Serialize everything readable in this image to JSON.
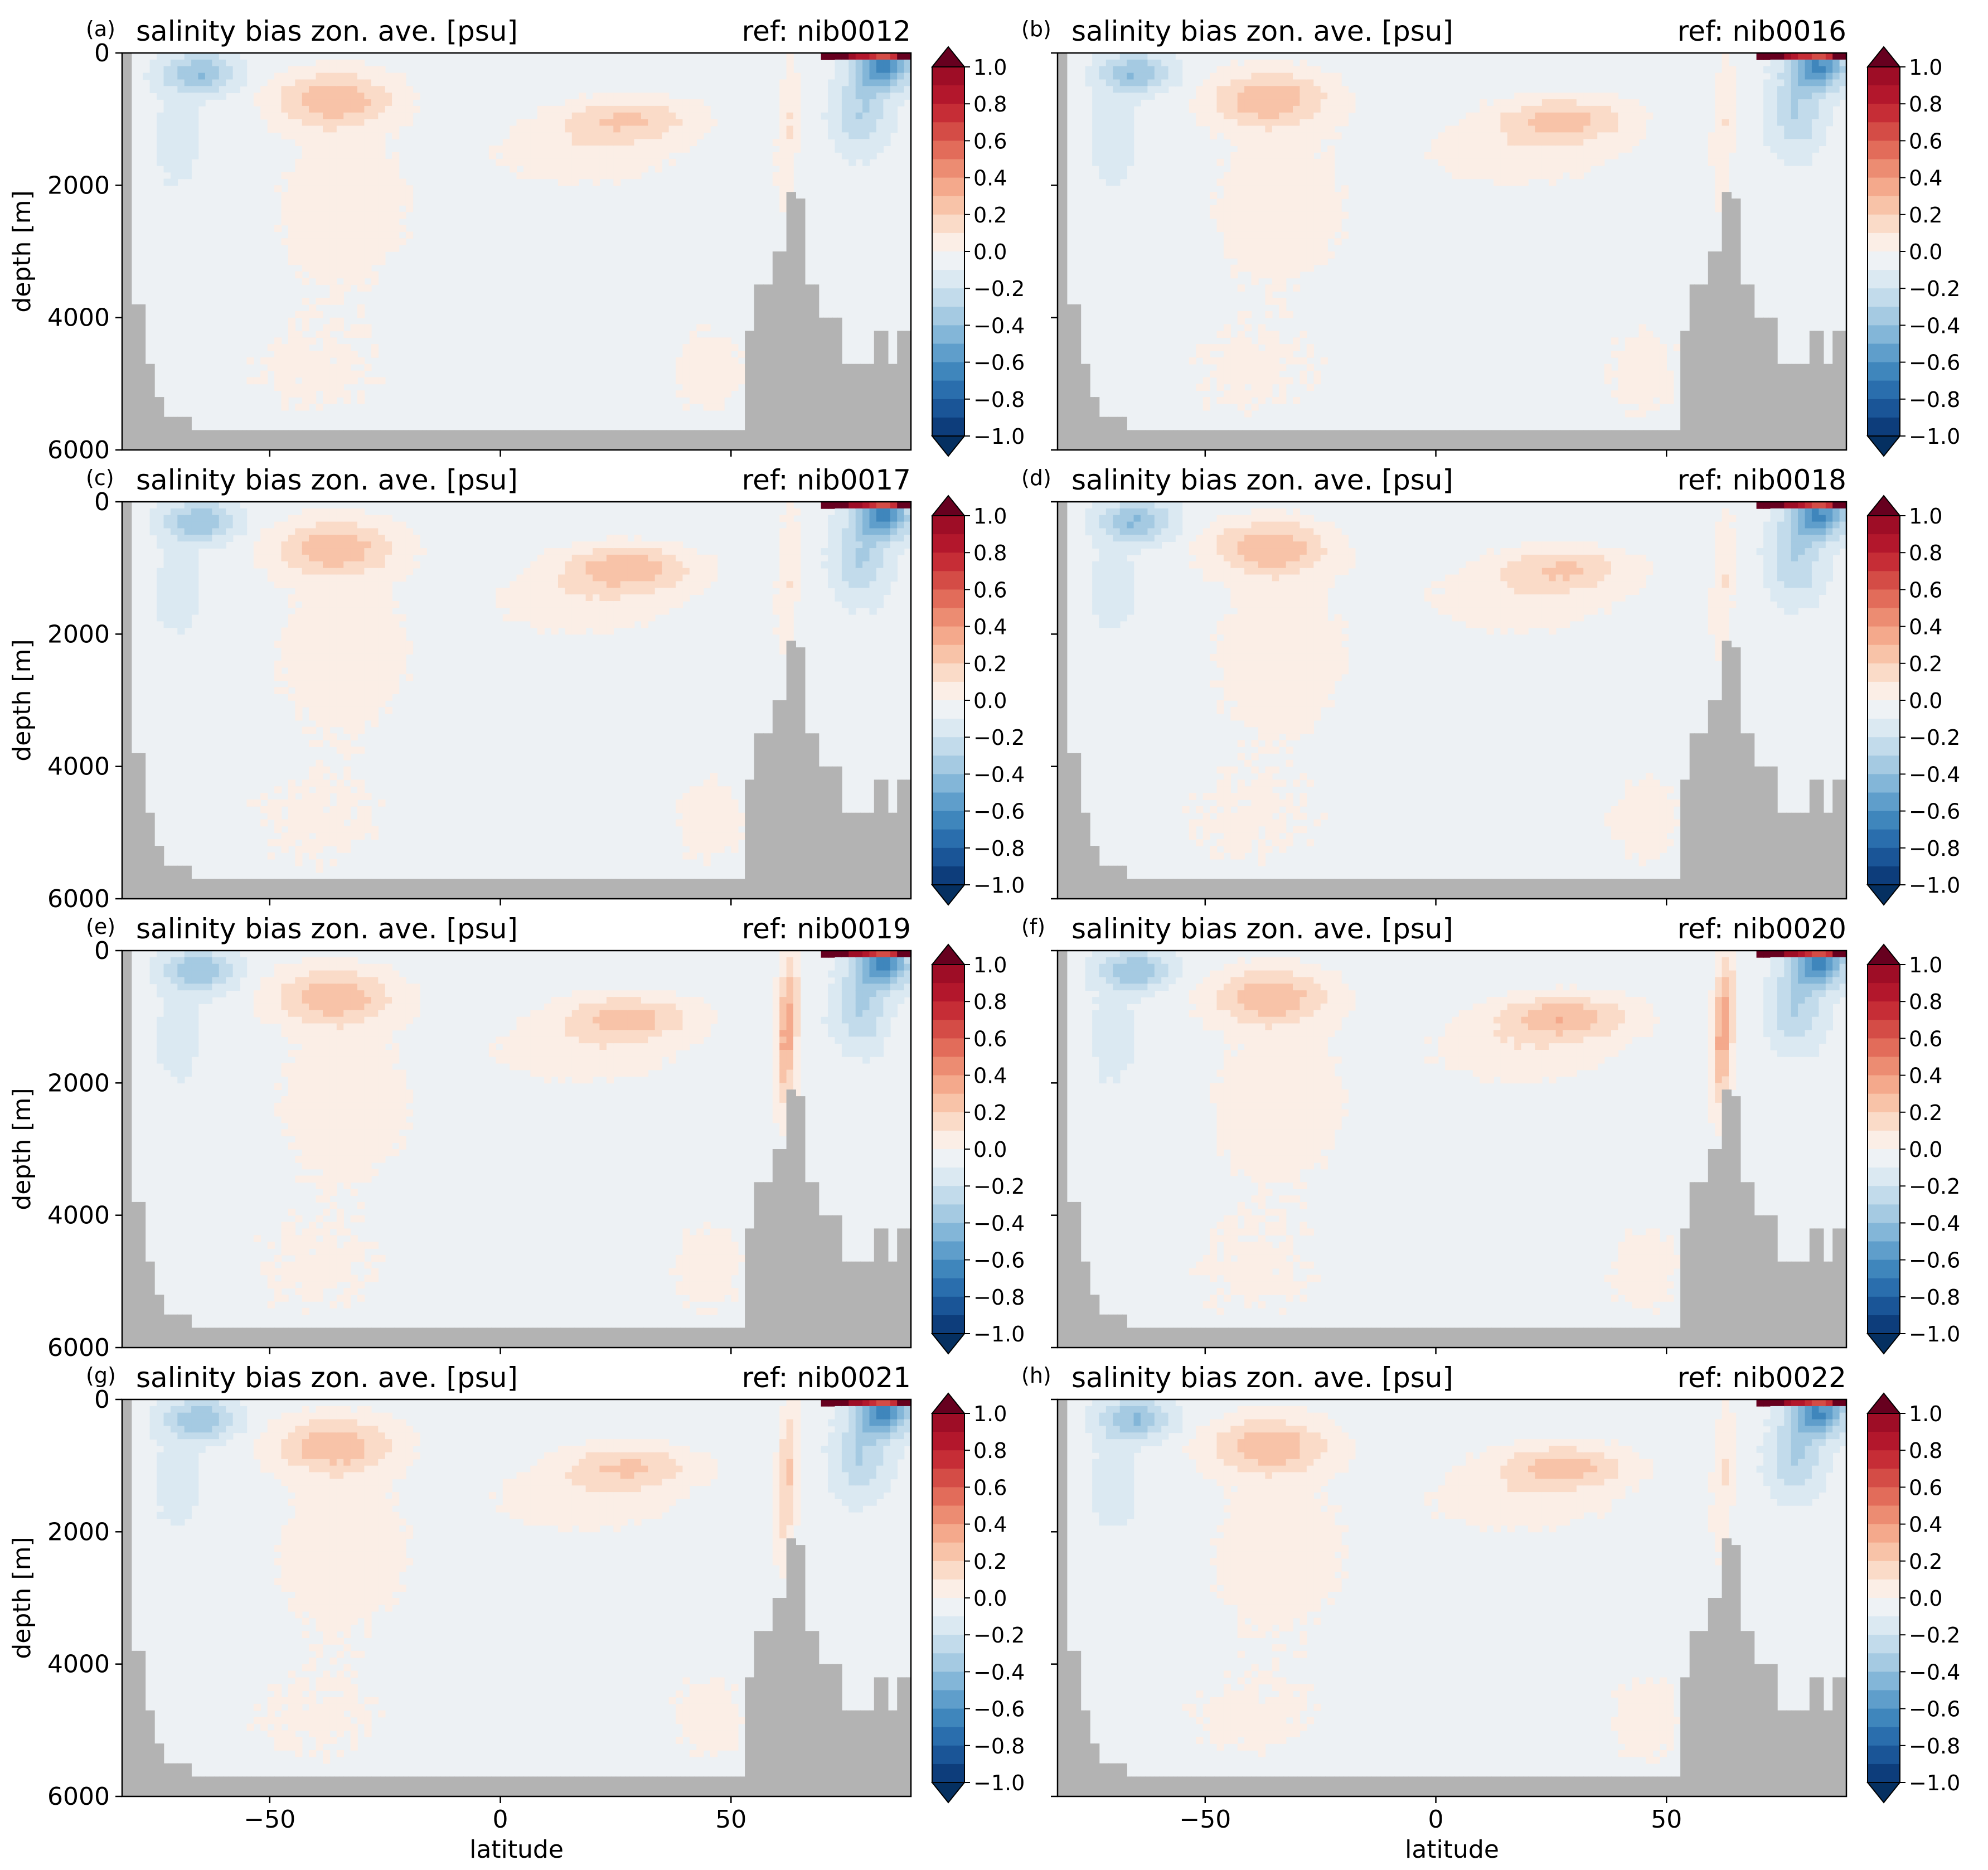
{
  "figure": {
    "colorbar_ticks": [
      "1.0",
      "0.8",
      "0.6",
      "0.4",
      "0.2",
      "0.0",
      "−0.2",
      "−0.4",
      "−0.6",
      "−0.8",
      "−1.0"
    ],
    "colorbar_colors": [
      "#9e0d26",
      "#b3172c",
      "#c62d36",
      "#d44c46",
      "#e26c5a",
      "#ec8c72",
      "#f4a98c",
      "#f8c3a8",
      "#fadbc8",
      "#fbeee6",
      "#eef2f5",
      "#dbe9f2",
      "#c2dbeb",
      "#a5cae2",
      "#83b6d8",
      "#5f9ecb",
      "#3f86bc",
      "#2a6ead",
      "#1a5597",
      "#0d3d7b"
    ],
    "colorbar_extend_colors": {
      "max": "#67001f",
      "min": "#053061"
    },
    "bathymetry_color": "#b3b3b3",
    "background_bias_color": "#edf1f4"
  },
  "chart_data": [
    {
      "type": "heatmap",
      "panel_label": "(a)",
      "title": "salinity bias zon. ave. [psu]",
      "ref": "ref: nib0012",
      "xlabel": "",
      "ylabel": "depth [m]",
      "xlim": [
        -82,
        89
      ],
      "ylim": [
        6000,
        0
      ],
      "xticks": [
        "−50",
        "0",
        "50"
      ],
      "yticks": [
        "0",
        "2000",
        "4000",
        "6000"
      ],
      "colorbar_range": [
        -1.0,
        1.0
      ],
      "show_xticklabels": false,
      "show_ylabels": true,
      "variant": 0
    },
    {
      "type": "heatmap",
      "panel_label": "(b)",
      "title": "salinity bias zon. ave. [psu]",
      "ref": "ref: nib0016",
      "xlabel": "",
      "ylabel": "",
      "xlim": [
        -82,
        89
      ],
      "ylim": [
        6000,
        0
      ],
      "xticks": [
        "−50",
        "0",
        "50"
      ],
      "yticks": [],
      "colorbar_range": [
        -1.0,
        1.0
      ],
      "show_xticklabels": false,
      "show_ylabels": false,
      "variant": 1
    },
    {
      "type": "heatmap",
      "panel_label": "(c)",
      "title": "salinity bias zon. ave. [psu]",
      "ref": "ref: nib0017",
      "xlabel": "",
      "ylabel": "depth [m]",
      "xlim": [
        -82,
        89
      ],
      "ylim": [
        6000,
        0
      ],
      "xticks": [
        "−50",
        "0",
        "50"
      ],
      "yticks": [
        "0",
        "2000",
        "4000",
        "6000"
      ],
      "colorbar_range": [
        -1.0,
        1.0
      ],
      "show_xticklabels": false,
      "show_ylabels": true,
      "variant": 2
    },
    {
      "type": "heatmap",
      "panel_label": "(d)",
      "title": "salinity bias zon. ave. [psu]",
      "ref": "ref: nib0018",
      "xlabel": "",
      "ylabel": "",
      "xlim": [
        -82,
        89
      ],
      "ylim": [
        6000,
        0
      ],
      "xticks": [
        "−50",
        "0",
        "50"
      ],
      "yticks": [],
      "colorbar_range": [
        -1.0,
        1.0
      ],
      "show_xticklabels": false,
      "show_ylabels": false,
      "variant": 3
    },
    {
      "type": "heatmap",
      "panel_label": "(e)",
      "title": "salinity bias zon. ave. [psu]",
      "ref": "ref: nib0019",
      "xlabel": "",
      "ylabel": "depth [m]",
      "xlim": [
        -82,
        89
      ],
      "ylim": [
        6000,
        0
      ],
      "xticks": [
        "−50",
        "0",
        "50"
      ],
      "yticks": [
        "0",
        "2000",
        "4000",
        "6000"
      ],
      "colorbar_range": [
        -1.0,
        1.0
      ],
      "show_xticklabels": false,
      "show_ylabels": true,
      "variant": 4
    },
    {
      "type": "heatmap",
      "panel_label": "(f)",
      "title": "salinity bias zon. ave. [psu]",
      "ref": "ref: nib0020",
      "xlabel": "",
      "ylabel": "",
      "xlim": [
        -82,
        89
      ],
      "ylim": [
        6000,
        0
      ],
      "xticks": [
        "−50",
        "0",
        "50"
      ],
      "yticks": [],
      "colorbar_range": [
        -1.0,
        1.0
      ],
      "show_xticklabels": false,
      "show_ylabels": false,
      "variant": 5
    },
    {
      "type": "heatmap",
      "panel_label": "(g)",
      "title": "salinity bias zon. ave. [psu]",
      "ref": "ref: nib0021",
      "xlabel": "latitude",
      "ylabel": "depth [m]",
      "xlim": [
        -82,
        89
      ],
      "ylim": [
        6000,
        0
      ],
      "xticks": [
        "−50",
        "0",
        "50"
      ],
      "yticks": [
        "0",
        "2000",
        "4000",
        "6000"
      ],
      "colorbar_range": [
        -1.0,
        1.0
      ],
      "show_xticklabels": true,
      "show_ylabels": true,
      "variant": 6
    },
    {
      "type": "heatmap",
      "panel_label": "(h)",
      "title": "salinity bias zon. ave. [psu]",
      "ref": "ref: nib0022",
      "xlabel": "latitude",
      "ylabel": "",
      "xlim": [
        -82,
        89
      ],
      "ylim": [
        6000,
        0
      ],
      "xticks": [
        "−50",
        "0",
        "50"
      ],
      "yticks": [],
      "colorbar_range": [
        -1.0,
        1.0
      ],
      "show_xticklabels": true,
      "show_ylabels": false,
      "variant": 7
    }
  ]
}
